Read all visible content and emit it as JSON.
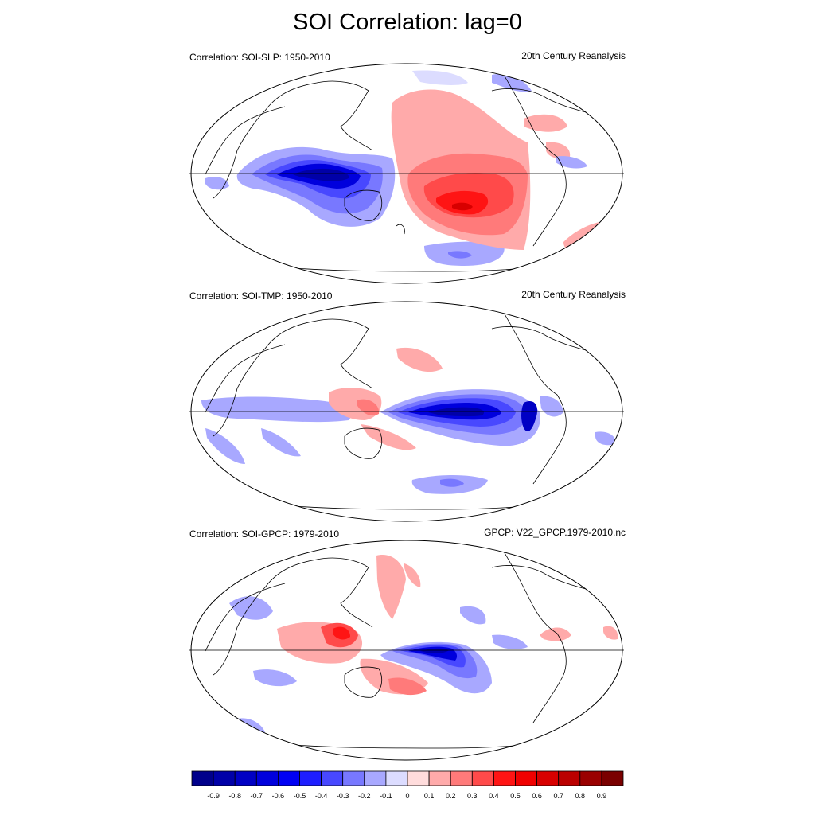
{
  "figure": {
    "title": "SOI Correlation: lag=0"
  },
  "panels": [
    {
      "left_label": "Correlation: SOI-SLP: 1950-2010",
      "right_label": "20th Century Reanalysis"
    },
    {
      "left_label": "Correlation: SOI-TMP: 1950-2010",
      "right_label": "20th Century Reanalysis"
    },
    {
      "left_label": "Correlation: SOI-GPCP: 1979-2010",
      "right_label": "GPCP: V22_GPCP.1979-2010.nc"
    }
  ],
  "colorbar": {
    "labels": [
      "-0.9",
      "-0.8",
      "-0.7",
      "-0.6",
      "-0.5",
      "-0.4",
      "-0.3",
      "-0.2",
      "-0.1",
      "0",
      "0.1",
      "0.2",
      "0.3",
      "0.4",
      "0.5",
      "0.6",
      "0.7",
      "0.8",
      "0.9"
    ],
    "colors": [
      "#00008B",
      "#0000A8",
      "#0000C4",
      "#0000DD",
      "#0000F4",
      "#1E1EFF",
      "#4848FF",
      "#7878FF",
      "#A8A8FF",
      "#DCDCFF",
      "#FFDCDC",
      "#FFAAAA",
      "#FF7A7A",
      "#FF4A4A",
      "#FF1414",
      "#F00000",
      "#D80000",
      "#BB0000",
      "#9A0000",
      "#7A0000"
    ]
  },
  "colors": {
    "positive": "#FF0000",
    "negative": "#0000FF",
    "coastline": "#000000"
  }
}
